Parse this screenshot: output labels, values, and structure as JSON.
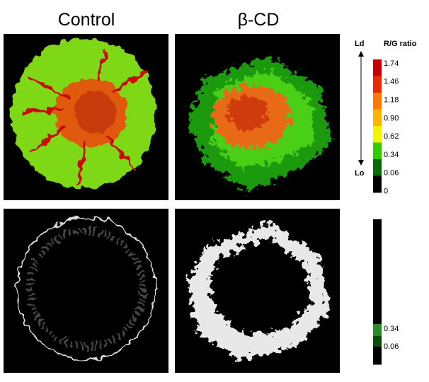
{
  "titles": [
    "Control",
    "β-CD"
  ],
  "colorbar": {
    "title": "R/G ratio",
    "top_label": "Ld",
    "bottom_label": "Lo",
    "ticks": [
      "1.74",
      "1.46",
      "1.18",
      "0.90",
      "0.62",
      "0.34",
      "0.06",
      "0"
    ],
    "colors": [
      "#c80000",
      "#e82a00",
      "#ff7a00",
      "#ffb400",
      "#f4f400",
      "#30cc00",
      "#0a6a0a",
      "#000000"
    ]
  },
  "threshold_bar": {
    "ticks": [
      "0.34",
      "0.06"
    ],
    "colors": [
      "#000000",
      "#2a8a2a",
      "#0a4a0a",
      "#000000"
    ]
  }
}
